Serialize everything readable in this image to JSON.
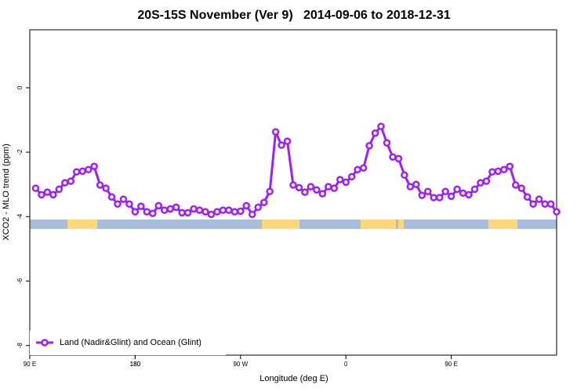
{
  "chart_data": {
    "type": "line",
    "title": "20S-15S November (Ver 9)   2014-09-06 to 2018-12-31",
    "x_label": "Longitude (deg E)",
    "y_label": "XCO2 - MLO trend (ppm)",
    "x": [
      95,
      100,
      105,
      110,
      115,
      120,
      125,
      130,
      135,
      140,
      145,
      150,
      155,
      160,
      165,
      170,
      175,
      180,
      185,
      190,
      195,
      200,
      205,
      210,
      215,
      220,
      225,
      230,
      235,
      240,
      245,
      250,
      255,
      260,
      265,
      270,
      275,
      280,
      285,
      290,
      295,
      300,
      305,
      310,
      315,
      320,
      325,
      330,
      335,
      340,
      345,
      350,
      355,
      360,
      365,
      370,
      375,
      380,
      385,
      390,
      395,
      400,
      405,
      410,
      415,
      420,
      425,
      430,
      435,
      440,
      445,
      450,
      455,
      460,
      465,
      470,
      475,
      480,
      485,
      490,
      495,
      500,
      505,
      510,
      515,
      520,
      525,
      530,
      535,
      540
    ],
    "series": [
      {
        "name": "Land (Nadir&Glint) and Ocean (Glint)",
        "color": "#a020f0",
        "values": [
          -3.12,
          -3.32,
          -3.24,
          -3.32,
          -3.15,
          -2.95,
          -2.9,
          -2.61,
          -2.59,
          -2.54,
          -2.44,
          -3.02,
          -3.12,
          -3.39,
          -3.61,
          -3.46,
          -3.61,
          -3.85,
          -3.68,
          -3.85,
          -3.9,
          -3.66,
          -3.8,
          -3.76,
          -3.71,
          -3.88,
          -3.88,
          -3.76,
          -3.8,
          -3.85,
          -3.93,
          -3.85,
          -3.8,
          -3.8,
          -3.85,
          -3.83,
          -3.66,
          -3.93,
          -3.71,
          -3.56,
          -3.22,
          -1.37,
          -1.78,
          -1.66,
          -3.02,
          -3.1,
          -3.24,
          -3.07,
          -3.17,
          -3.29,
          -3.07,
          -3.12,
          -2.85,
          -2.93,
          -2.76,
          -2.54,
          -2.49,
          -1.8,
          -1.41,
          -1.2,
          -1.71,
          -2.15,
          -2.2,
          -2.71,
          -3.07,
          -3,
          -3.34,
          -3.22,
          -3.41,
          -3.41,
          -3.22,
          -3.37,
          -3.15,
          -3.27,
          -3.32,
          -3.15,
          -2.95,
          -2.9,
          -2.61,
          -2.59,
          -2.54,
          -2.44,
          -3.02,
          -3.12,
          -3.39,
          -3.61,
          -3.46,
          -3.61,
          -3.61,
          -3.85
        ]
      }
    ],
    "xlim": [
      90,
      540
    ],
    "xticks": [
      {
        "value": 90,
        "label": "90 E"
      },
      180,
      {
        "value": 270,
        "label": "90 W"
      },
      {
        "value": 360,
        "label": "0"
      },
      {
        "value": 450,
        "label": "90 E"
      },
      180.0001
    ],
    "ylim": [
      -8.3,
      1.8
    ],
    "yticks": [
      0,
      -2,
      -4,
      -6,
      -8
    ],
    "legend": "bottom-left"
  }
}
